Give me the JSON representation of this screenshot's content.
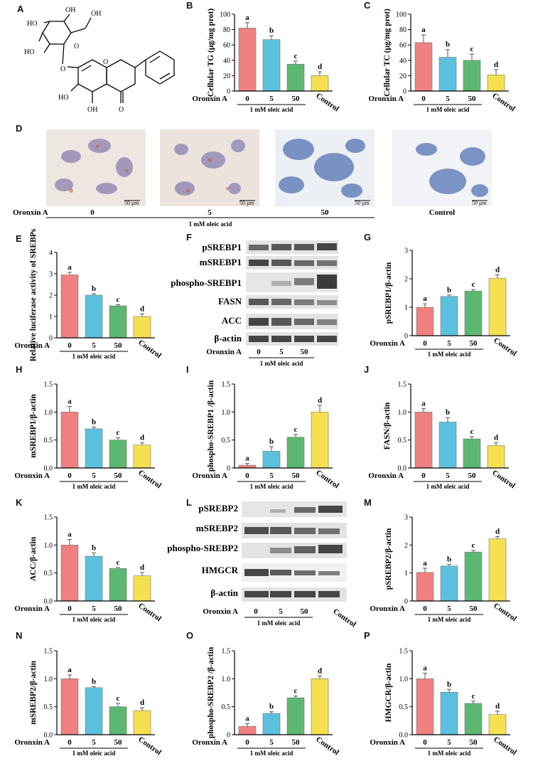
{
  "panel_labels": {
    "A": "A",
    "B": "B",
    "C": "C",
    "D": "D",
    "E": "E",
    "F": "F",
    "G": "G",
    "H": "H",
    "I": "I",
    "J": "J",
    "K": "K",
    "L": "L",
    "M": "M",
    "N": "N",
    "O": "O",
    "P": "P"
  },
  "common": {
    "treatment_label": "Oronxin A",
    "condition_label": "1 mM oleic acid",
    "categories": [
      "0",
      "5",
      "50",
      "Control"
    ]
  },
  "colors": {
    "bars": [
      "#f08080",
      "#5bc0de",
      "#5cb870",
      "#f5e050"
    ]
  },
  "structure": {
    "labels": [
      "OH",
      "OH",
      "HO",
      "HO",
      "O",
      "O",
      "O",
      "HO",
      "OH",
      "O"
    ]
  },
  "micrographs": {
    "captions": [
      "0",
      "5",
      "50",
      "Control"
    ],
    "scale_bar": "50 μm"
  },
  "blot_f": {
    "rows": [
      "pSREBP1",
      "mSREBP1",
      "phospho-SREBP1",
      "FASN",
      "ACC",
      "β-actin"
    ],
    "lanes": [
      "0",
      "5",
      "50"
    ]
  },
  "blot_l": {
    "rows": [
      "pSREBP2",
      "mSREBP2",
      "phospho-SREBP2",
      "HMGCR",
      "β-actin"
    ],
    "lanes": [
      "0",
      "5",
      "50"
    ]
  },
  "chart_data": [
    {
      "panel": "B",
      "type": "bar",
      "categories": [
        "0",
        "5",
        "50",
        "Control"
      ],
      "values": [
        82,
        67,
        35,
        20
      ],
      "errors": [
        7,
        5,
        4,
        5
      ],
      "letters": [
        "a",
        "b",
        "c",
        "d"
      ],
      "ylabel": "Cellular TG (μg/mg prot)",
      "ylim": [
        0,
        100
      ],
      "yticks": [
        "0",
        "20",
        "40",
        "60",
        "80",
        "100"
      ]
    },
    {
      "panel": "C",
      "type": "bar",
      "categories": [
        "0",
        "5",
        "50",
        "Control"
      ],
      "values": [
        63,
        44,
        40,
        21
      ],
      "errors": [
        10,
        10,
        8,
        7
      ],
      "letters": [
        "a",
        "b",
        "c",
        "d"
      ],
      "ylabel": "Cellular TC (μg/mg prot)",
      "ylim": [
        0,
        100
      ],
      "yticks": [
        "0",
        "20",
        "40",
        "60",
        "80",
        "100"
      ]
    },
    {
      "panel": "E",
      "type": "bar",
      "categories": [
        "0",
        "5",
        "50",
        "Control"
      ],
      "values": [
        2.95,
        2.0,
        1.5,
        1.0
      ],
      "errors": [
        0.12,
        0.06,
        0.05,
        0.12
      ],
      "letters": [
        "a",
        "b",
        "c",
        "d"
      ],
      "ylabel": "Relative luciferase activity of SREBPs",
      "ylim": [
        0,
        4
      ],
      "yticks": [
        "0",
        "1",
        "2",
        "3",
        "4"
      ]
    },
    {
      "panel": "G",
      "type": "bar",
      "categories": [
        "0",
        "5",
        "50",
        "Control"
      ],
      "values": [
        1.0,
        1.38,
        1.57,
        2.02
      ],
      "errors": [
        0.12,
        0.05,
        0.05,
        0.12
      ],
      "letters": [
        "a",
        "b",
        "c",
        "d"
      ],
      "ylabel": "pSREBP1/β-actin",
      "ylim": [
        0,
        3
      ],
      "yticks": [
        "0",
        "1",
        "2",
        "3"
      ]
    },
    {
      "panel": "H",
      "type": "bar",
      "categories": [
        "0",
        "5",
        "50",
        "Control"
      ],
      "values": [
        1.0,
        0.7,
        0.5,
        0.41
      ],
      "errors": [
        0.1,
        0.03,
        0.04,
        0.04
      ],
      "letters": [
        "a",
        "b",
        "c",
        "d"
      ],
      "ylabel": "mSREBP1/β-actin",
      "ylim": [
        0,
        1.5
      ],
      "yticks": [
        "0.0",
        "0.5",
        "1.0",
        "1.5"
      ]
    },
    {
      "panel": "I",
      "type": "bar",
      "categories": [
        "0",
        "5",
        "50",
        "Control"
      ],
      "values": [
        0.05,
        0.3,
        0.55,
        1.0
      ],
      "errors": [
        0.03,
        0.08,
        0.05,
        0.12
      ],
      "letters": [
        "a",
        "b",
        "c",
        "d"
      ],
      "ylabel": "phospho-SREBP1 /β-actin",
      "ylim": [
        0,
        1.5
      ],
      "yticks": [
        "0",
        "0.5",
        "1.0",
        "1.5"
      ]
    },
    {
      "panel": "J",
      "type": "bar",
      "categories": [
        "0",
        "5",
        "50",
        "Control"
      ],
      "values": [
        1.0,
        0.82,
        0.52,
        0.4
      ],
      "errors": [
        0.06,
        0.08,
        0.04,
        0.05
      ],
      "letters": [
        "a",
        "b",
        "c",
        "d"
      ],
      "ylabel": "FASN/β-actin",
      "ylim": [
        0,
        1.5
      ],
      "yticks": [
        "0.0",
        "0.5",
        "1.0",
        "1.5"
      ]
    },
    {
      "panel": "K",
      "type": "bar",
      "categories": [
        "0",
        "5",
        "50",
        "Control"
      ],
      "values": [
        1.0,
        0.8,
        0.58,
        0.45
      ],
      "errors": [
        0.1,
        0.06,
        0.02,
        0.06
      ],
      "letters": [
        "a",
        "b",
        "c",
        "d"
      ],
      "ylabel": "ACC/β-actin",
      "ylim": [
        0,
        1.5
      ],
      "yticks": [
        "0.0",
        "0.5",
        "1.0",
        "1.5"
      ]
    },
    {
      "panel": "M",
      "type": "bar",
      "categories": [
        "0",
        "5",
        "50",
        "Control"
      ],
      "values": [
        1.02,
        1.25,
        1.75,
        2.22
      ],
      "errors": [
        0.15,
        0.06,
        0.06,
        0.08
      ],
      "letters": [
        "a",
        "b",
        "c",
        "d"
      ],
      "ylabel": "pSREBP2/β-actin",
      "ylim": [
        0,
        3
      ],
      "yticks": [
        "0",
        "1",
        "2",
        "3"
      ]
    },
    {
      "panel": "N",
      "type": "bar",
      "categories": [
        "0",
        "5",
        "50",
        "Control"
      ],
      "values": [
        1.0,
        0.84,
        0.5,
        0.43
      ],
      "errors": [
        0.07,
        0.02,
        0.06,
        0.05
      ],
      "letters": [
        "a",
        "b",
        "c",
        "d"
      ],
      "ylabel": "mSREBP2/β-actin",
      "ylim": [
        0,
        1.5
      ],
      "yticks": [
        "0.0",
        "0.5",
        "1.0",
        "1.5"
      ]
    },
    {
      "panel": "O",
      "type": "bar",
      "categories": [
        "0",
        "5",
        "50",
        "Control"
      ],
      "values": [
        0.15,
        0.38,
        0.66,
        1.0
      ],
      "errors": [
        0.05,
        0.03,
        0.03,
        0.05
      ],
      "letters": [
        "a",
        "b",
        "c",
        "d"
      ],
      "ylabel": "phospho-SREBP2 /β-actin",
      "ylim": [
        0,
        1.5
      ],
      "yticks": [
        "0",
        "0.5",
        "1.0",
        "1.5"
      ]
    },
    {
      "panel": "P",
      "type": "bar",
      "categories": [
        "0",
        "5",
        "50",
        "Control"
      ],
      "values": [
        1.0,
        0.76,
        0.56,
        0.36
      ],
      "errors": [
        0.1,
        0.05,
        0.04,
        0.06
      ],
      "letters": [
        "a",
        "b",
        "c",
        "d"
      ],
      "ylabel": "HMGCR/β-actin",
      "ylim": [
        0,
        1.5
      ],
      "yticks": [
        "0.0",
        "0.5",
        "1.0",
        "1.5"
      ]
    }
  ]
}
